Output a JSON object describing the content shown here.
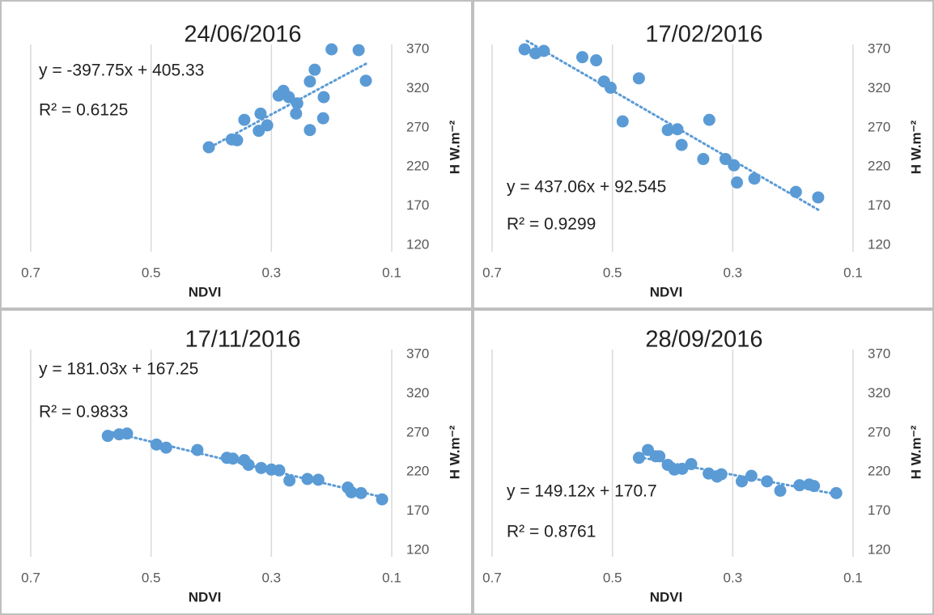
{
  "chart_data": [
    {
      "type": "scatter",
      "title": "24/06/2016",
      "x_label": "NDVI",
      "y_label": "H W.m⁻²",
      "annotations": [
        "y = -397.75x + 405.33",
        "R² = 0.6125"
      ],
      "x": [
        0.404,
        0.366,
        0.357,
        0.345,
        0.318,
        0.321,
        0.307,
        0.288,
        0.28,
        0.271,
        0.257,
        0.259,
        0.236,
        0.228,
        0.236,
        0.213,
        0.214,
        0.2,
        0.155,
        0.143
      ],
      "values": [
        245,
        255,
        254,
        280,
        288,
        266,
        273,
        311,
        317,
        309,
        301,
        288,
        329,
        344,
        267,
        309,
        282,
        370,
        369,
        330
      ],
      "color": "#5b9bd5",
      "xlim": [
        0.7,
        0.1
      ],
      "xticks": [
        0.7,
        0.5,
        0.3,
        0.1
      ],
      "ylim": [
        120,
        370
      ],
      "yticks": [
        120,
        170,
        220,
        270,
        320,
        370
      ],
      "grid": "x"
    },
    {
      "type": "scatter",
      "title": "17/02/2016",
      "x_label": "NDVI",
      "y_label": "H W.m⁻²",
      "annotations": [
        "y = 437.06x + 92.545",
        "R² = 0.9299"
      ],
      "x": [
        0.646,
        0.628,
        0.614,
        0.55,
        0.527,
        0.514,
        0.503,
        0.456,
        0.483,
        0.408,
        0.392,
        0.385,
        0.339,
        0.349,
        0.312,
        0.298,
        0.293,
        0.264,
        0.195,
        0.158
      ],
      "values": [
        370,
        365,
        368,
        360,
        356,
        329,
        321,
        333,
        278,
        267,
        268,
        248,
        280,
        230,
        230,
        222,
        200,
        205,
        188,
        181
      ],
      "color": "#5b9bd5",
      "xlim": [
        0.7,
        0.1
      ],
      "xticks": [
        0.7,
        0.5,
        0.3,
        0.1
      ],
      "ylim": [
        120,
        370
      ],
      "yticks": [
        120,
        170,
        220,
        270,
        320,
        370
      ],
      "grid": "x"
    },
    {
      "type": "scatter",
      "title": "17/11/2016",
      "x_label": "NDVI",
      "y_label": "H W.m⁻²",
      "annotations": [
        "y = 181.03x + 167.25",
        "R² = 0.9833"
      ],
      "x": [
        0.572,
        0.553,
        0.54,
        0.491,
        0.475,
        0.423,
        0.374,
        0.364,
        0.345,
        0.338,
        0.317,
        0.3,
        0.287,
        0.27,
        0.24,
        0.222,
        0.173,
        0.167,
        0.151,
        0.116
      ],
      "values": [
        266,
        268,
        269,
        255,
        251,
        248,
        238,
        237,
        235,
        229,
        225,
        223,
        222,
        209,
        211,
        210,
        200,
        194,
        193,
        185
      ],
      "color": "#5b9bd5",
      "xlim": [
        0.7,
        0.1
      ],
      "xticks": [
        0.7,
        0.5,
        0.3,
        0.1
      ],
      "ylim": [
        120,
        370
      ],
      "yticks": [
        120,
        170,
        220,
        270,
        320,
        370
      ],
      "grid": "x"
    },
    {
      "type": "scatter",
      "title": "28/09/2016",
      "x_label": "NDVI",
      "y_label": "H W.m⁻²",
      "annotations": [
        "y = 149.12x + 170.7",
        "R² = 0.8761"
      ],
      "x": [
        0.456,
        0.441,
        0.428,
        0.422,
        0.408,
        0.397,
        0.384,
        0.369,
        0.34,
        0.326,
        0.319,
        0.285,
        0.269,
        0.243,
        0.221,
        0.189,
        0.173,
        0.165,
        0.128
      ],
      "values": [
        238,
        248,
        240,
        240,
        229,
        223,
        224,
        230,
        218,
        214,
        217,
        208,
        215,
        208,
        196,
        203,
        204,
        202,
        193
      ],
      "color": "#5b9bd5",
      "xlim": [
        0.7,
        0.1
      ],
      "xticks": [
        0.7,
        0.5,
        0.3,
        0.1
      ],
      "ylim": [
        120,
        370
      ],
      "yticks": [
        120,
        170,
        220,
        270,
        320,
        370
      ],
      "grid": "x"
    }
  ]
}
